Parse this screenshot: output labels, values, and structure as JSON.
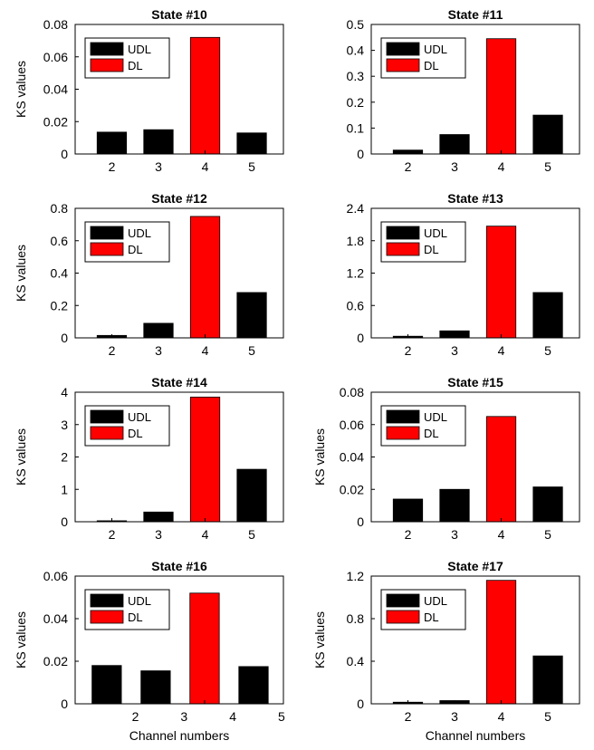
{
  "chart_data": [
    {
      "type": "bar",
      "title": "State #10",
      "ylabel": "KS values",
      "xlabel": "",
      "categories": [
        "2",
        "3",
        "4",
        "5"
      ],
      "values": [
        0.0135,
        0.015,
        0.072,
        0.013
      ],
      "highlight_category": "4",
      "ylim": [
        0,
        0.08
      ],
      "yticks": [
        0,
        0.02,
        0.04,
        0.06,
        0.08
      ],
      "ytick_labels": [
        "0",
        "0.02",
        "0.04",
        "0.06",
        "0.08"
      ],
      "legend": [
        "UDL",
        "DL"
      ],
      "legend_position": "top-left",
      "grid": false
    },
    {
      "type": "bar",
      "title": "State #11",
      "ylabel": "",
      "xlabel": "",
      "categories": [
        "2",
        "3",
        "4",
        "5"
      ],
      "values": [
        0.015,
        0.075,
        0.445,
        0.15
      ],
      "highlight_category": "4",
      "ylim": [
        0,
        0.5
      ],
      "yticks": [
        0,
        0.1,
        0.2,
        0.3,
        0.4,
        0.5
      ],
      "ytick_labels": [
        "0",
        "0.1",
        "0.2",
        "0.3",
        "0.4",
        "0.5"
      ],
      "legend": [
        "UDL",
        "DL"
      ],
      "legend_position": "top-left",
      "grid": false
    },
    {
      "type": "bar",
      "title": "State #12",
      "ylabel": "KS values",
      "xlabel": "",
      "categories": [
        "2",
        "3",
        "4",
        "5"
      ],
      "values": [
        0.015,
        0.09,
        0.75,
        0.28
      ],
      "highlight_category": "4",
      "ylim": [
        0,
        0.8
      ],
      "yticks": [
        0,
        0.2,
        0.4,
        0.6,
        0.8
      ],
      "ytick_labels": [
        "0",
        "0.2",
        "0.4",
        "0.6",
        "0.8"
      ],
      "legend": [
        "UDL",
        "DL"
      ],
      "legend_position": "top-left",
      "grid": false
    },
    {
      "type": "bar",
      "title": "State #13",
      "ylabel": "",
      "xlabel": "",
      "categories": [
        "2",
        "3",
        "4",
        "5"
      ],
      "values": [
        0.03,
        0.13,
        2.07,
        0.84
      ],
      "highlight_category": "4",
      "ylim": [
        0,
        2.4
      ],
      "yticks": [
        0,
        0.6,
        1.2,
        1.8,
        2.4
      ],
      "ytick_labels": [
        "0",
        "0.6",
        "1.2",
        "1.8",
        "2.4"
      ],
      "legend": [
        "UDL",
        "DL"
      ],
      "legend_position": "top-left",
      "grid": false
    },
    {
      "type": "bar",
      "title": "State #14",
      "ylabel": "KS values",
      "xlabel": "",
      "categories": [
        "2",
        "3",
        "4",
        "5"
      ],
      "values": [
        0.03,
        0.3,
        3.85,
        1.62
      ],
      "highlight_category": "4",
      "ylim": [
        0,
        4
      ],
      "yticks": [
        0,
        1,
        2,
        3,
        4
      ],
      "ytick_labels": [
        "0",
        "1",
        "2",
        "3",
        "4"
      ],
      "legend": [
        "UDL",
        "DL"
      ],
      "legend_position": "top-left",
      "grid": false
    },
    {
      "type": "bar",
      "title": "State #15",
      "ylabel": "KS values",
      "xlabel": "",
      "categories": [
        "2",
        "3",
        "4",
        "5"
      ],
      "values": [
        0.014,
        0.02,
        0.065,
        0.0215
      ],
      "highlight_category": "4",
      "ylim": [
        0,
        0.08
      ],
      "yticks": [
        0,
        0.02,
        0.04,
        0.06,
        0.08
      ],
      "ytick_labels": [
        "0",
        "0.02",
        "0.04",
        "0.06",
        "0.08"
      ],
      "legend": [
        "UDL",
        "DL"
      ],
      "legend_position": "top-left",
      "grid": false
    },
    {
      "type": "bar",
      "title": "State #16",
      "ylabel": "KS values",
      "xlabel": "Channel numbers",
      "categories": [
        "2",
        "3",
        "4",
        "5"
      ],
      "values": [
        0.018,
        0.0155,
        0.052,
        0.0175
      ],
      "highlight_category": "4",
      "ylim": [
        0,
        0.06
      ],
      "yticks": [
        0,
        0.02,
        0.04,
        0.06
      ],
      "ytick_labels": [
        "0",
        "0.02",
        "0.04",
        "0.06"
      ],
      "legend": [
        "UDL",
        "DL"
      ],
      "legend_position": "top-left",
      "grid": false
    },
    {
      "type": "bar",
      "title": "State #17",
      "ylabel": "KS values",
      "xlabel": "Channel numbers",
      "categories": [
        "2",
        "3",
        "4",
        "5"
      ],
      "values": [
        0.015,
        0.03,
        1.16,
        0.45
      ],
      "highlight_category": "4",
      "ylim": [
        0,
        1.2
      ],
      "yticks": [
        0,
        0.4,
        0.8,
        1.2
      ],
      "ytick_labels": [
        "0",
        "0.4",
        "0.8",
        "1.2"
      ],
      "legend": [
        "UDL",
        "DL"
      ],
      "legend_position": "top-left",
      "grid": false
    }
  ],
  "colors": {
    "udl_bar": "#000000",
    "dl_bar": "#ff0000",
    "axis": "#000000",
    "background": "#ffffff"
  }
}
